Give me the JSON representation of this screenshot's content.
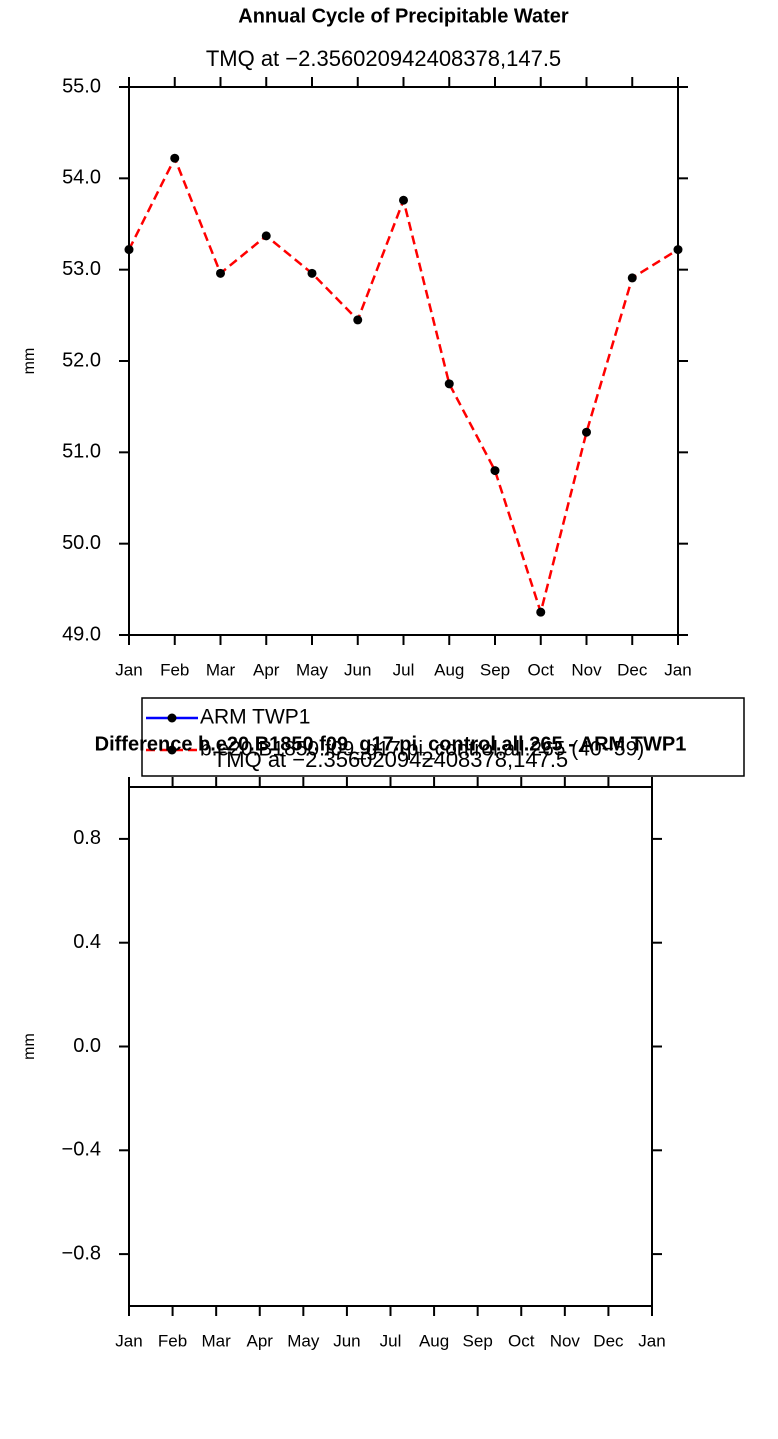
{
  "chart_data": [
    {
      "type": "line",
      "title": "Annual Cycle of Precipitable Water",
      "subtitle": "TMQ at −2.356020942408378,147.5",
      "y_label": "mm",
      "categories": [
        "Jan",
        "Feb",
        "Mar",
        "Apr",
        "May",
        "Jun",
        "Jul",
        "Aug",
        "Sep",
        "Oct",
        "Nov",
        "Dec",
        "Jan"
      ],
      "ylim": [
        49,
        55
      ],
      "yticks": [
        {
          "value": 49,
          "label": "49.0"
        },
        {
          "value": 50,
          "label": "50.0"
        },
        {
          "value": 51,
          "label": "51.0"
        },
        {
          "value": 52,
          "label": "52.0"
        },
        {
          "value": 53,
          "label": "53.0"
        },
        {
          "value": 54,
          "label": "54.0"
        },
        {
          "value": 55,
          "label": "55.0"
        }
      ],
      "series": [
        {
          "name": "ARM TWP1",
          "color": "#0000ff",
          "dash": false,
          "values": [
            null,
            null,
            null,
            null,
            null,
            null,
            null,
            null,
            null,
            null,
            null,
            null,
            null
          ]
        },
        {
          "name": "b.e20.B1850.f09_g17.pi_control.all.265 (40−59)",
          "color": "#ff0000",
          "dash": true,
          "values": [
            53.22,
            54.22,
            52.96,
            53.37,
            52.96,
            52.45,
            53.76,
            51.75,
            50.8,
            49.25,
            51.22,
            52.91,
            53.22
          ]
        }
      ]
    },
    {
      "type": "line",
      "title": "Difference b.e20.B1850.f09_g17.pi_control.all.265 - ARM TWP1",
      "subtitle": "TMQ at −2.356020942408378,147.5",
      "y_label": "mm",
      "categories": [
        "Jan",
        "Feb",
        "Mar",
        "Apr",
        "May",
        "Jun",
        "Jul",
        "Aug",
        "Sep",
        "Oct",
        "Nov",
        "Dec",
        "Jan"
      ],
      "ylim": [
        -1,
        1
      ],
      "yticks": [
        {
          "value": -0.8,
          "label": "−0.8"
        },
        {
          "value": -0.4,
          "label": "−0.4"
        },
        {
          "value": 0,
          "label": "0.0"
        },
        {
          "value": 0.4,
          "label": "0.4"
        },
        {
          "value": 0.8,
          "label": "0.8"
        }
      ],
      "series": []
    }
  ]
}
